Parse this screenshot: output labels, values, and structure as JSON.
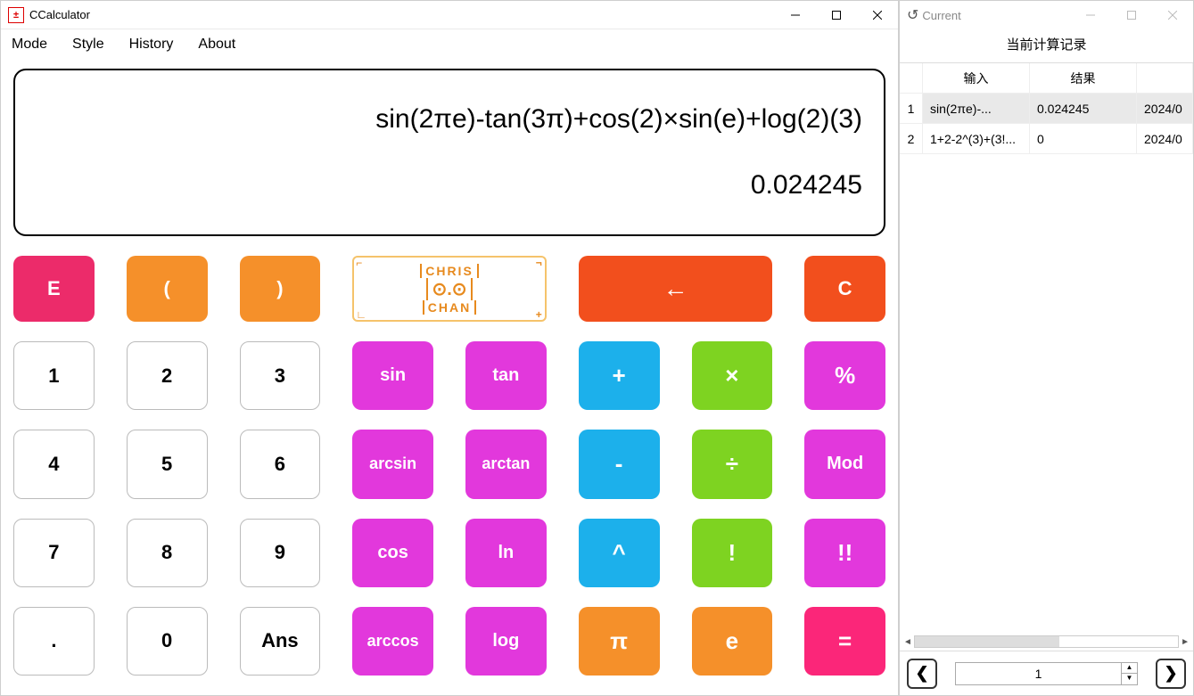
{
  "main": {
    "title": "CCalculator",
    "menu": [
      "Mode",
      "Style",
      "History",
      "About"
    ],
    "expression": "sin(2πe)-tan(3π)+cos(2)×sin(e)+log(2)(3)",
    "result": "0.024245",
    "logo_top": "CHRIS",
    "logo_eyes": "⊙.⊙",
    "logo_bottom": "CHAN"
  },
  "buttons": {
    "row0": {
      "E": {
        "label": "E",
        "color": "pink"
      },
      "lpar": {
        "label": "(",
        "color": "orange"
      },
      "rpar": {
        "label": ")",
        "color": "orange"
      },
      "back": {
        "label": "←",
        "color": "red"
      },
      "C": {
        "label": "C",
        "color": "red"
      }
    },
    "grid": [
      [
        "1",
        "2",
        "3",
        "sin",
        "tan",
        "+",
        "×",
        "%"
      ],
      [
        "4",
        "5",
        "6",
        "arcsin",
        "arctan",
        "-",
        "÷",
        "Mod"
      ],
      [
        "7",
        "8",
        "9",
        "cos",
        "ln",
        "^",
        "!",
        "!!"
      ],
      [
        ".",
        "0",
        "Ans",
        "arccos",
        "log",
        "π",
        "e",
        "="
      ]
    ],
    "col_style": [
      "white",
      "white",
      "white",
      "magenta",
      "magenta",
      "blue",
      "green",
      "magenta"
    ],
    "overrides": {
      "3_5": "orange",
      "3_6": "orange",
      "3_7": "hotpink"
    }
  },
  "history": {
    "title": "Current",
    "heading": "当前计算记录",
    "columns": [
      "输入",
      "结果",
      ""
    ],
    "rows": [
      {
        "idx": "1",
        "input": "sin(2πe)-...",
        "result": "0.024245",
        "time": "2024/0"
      },
      {
        "idx": "2",
        "input": "1+2-2^(3)+(3!...",
        "result": "0",
        "time": "2024/0"
      }
    ],
    "page": "1"
  },
  "colors": {
    "pink": "#ec2b6a",
    "orange": "#f5902a",
    "red": "#f24f1d",
    "magenta": "#e238dc",
    "blue": "#1cb0eb",
    "green": "#7ed321",
    "hotpink": "#fb2679"
  }
}
